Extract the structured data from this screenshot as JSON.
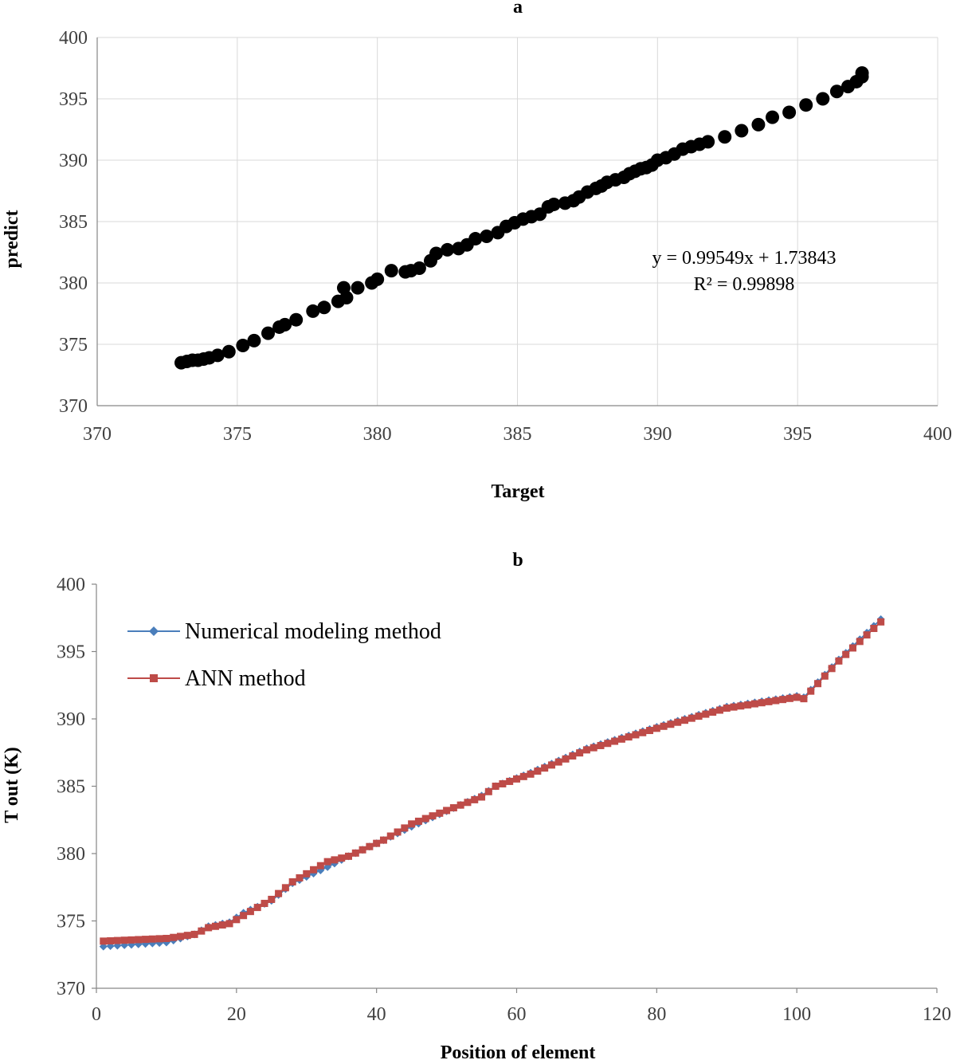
{
  "chart_data": [
    {
      "id": "a",
      "type": "scatter",
      "title": "a",
      "xlabel": "Target",
      "ylabel": "predict",
      "xlim": [
        370,
        400
      ],
      "ylim": [
        370,
        400
      ],
      "xticks": [
        370,
        375,
        380,
        385,
        390,
        395,
        400
      ],
      "yticks": [
        370,
        375,
        380,
        385,
        390,
        395,
        400
      ],
      "grid": true,
      "point_color": "#000000",
      "equation": "y = 0.99549x + 1.73843",
      "r_squared": "R² = 0.99898",
      "points": [
        [
          373.0,
          373.5
        ],
        [
          373.2,
          373.6
        ],
        [
          373.4,
          373.7
        ],
        [
          373.6,
          373.7
        ],
        [
          373.8,
          373.8
        ],
        [
          374.0,
          373.9
        ],
        [
          374.3,
          374.1
        ],
        [
          374.7,
          374.4
        ],
        [
          375.2,
          374.9
        ],
        [
          375.6,
          375.3
        ],
        [
          376.1,
          375.9
        ],
        [
          376.5,
          376.4
        ],
        [
          376.7,
          376.6
        ],
        [
          377.1,
          377.0
        ],
        [
          377.7,
          377.7
        ],
        [
          378.1,
          378.0
        ],
        [
          378.6,
          378.5
        ],
        [
          378.8,
          379.6
        ],
        [
          378.9,
          378.8
        ],
        [
          379.3,
          379.6
        ],
        [
          379.8,
          380.0
        ],
        [
          380.0,
          380.3
        ],
        [
          380.5,
          381.0
        ],
        [
          381.0,
          380.9
        ],
        [
          381.2,
          381.0
        ],
        [
          381.5,
          381.2
        ],
        [
          381.9,
          381.8
        ],
        [
          382.1,
          382.4
        ],
        [
          382.5,
          382.7
        ],
        [
          382.9,
          382.8
        ],
        [
          383.2,
          383.1
        ],
        [
          383.5,
          383.6
        ],
        [
          383.9,
          383.8
        ],
        [
          384.3,
          384.1
        ],
        [
          384.6,
          384.6
        ],
        [
          384.9,
          384.9
        ],
        [
          385.2,
          385.2
        ],
        [
          385.5,
          385.4
        ],
        [
          385.8,
          385.6
        ],
        [
          386.1,
          386.2
        ],
        [
          386.3,
          386.4
        ],
        [
          386.7,
          386.5
        ],
        [
          387.0,
          386.7
        ],
        [
          387.2,
          387.0
        ],
        [
          387.5,
          387.4
        ],
        [
          387.8,
          387.7
        ],
        [
          388.0,
          387.9
        ],
        [
          388.2,
          388.2
        ],
        [
          388.5,
          388.4
        ],
        [
          388.8,
          388.6
        ],
        [
          389.0,
          388.9
        ],
        [
          389.2,
          389.1
        ],
        [
          389.4,
          389.3
        ],
        [
          389.6,
          389.4
        ],
        [
          389.8,
          389.6
        ],
        [
          390.0,
          390.0
        ],
        [
          390.3,
          390.2
        ],
        [
          390.6,
          390.5
        ],
        [
          390.9,
          390.9
        ],
        [
          391.2,
          391.1
        ],
        [
          391.5,
          391.3
        ],
        [
          391.8,
          391.5
        ],
        [
          392.4,
          391.9
        ],
        [
          393.0,
          392.4
        ],
        [
          393.6,
          392.9
        ],
        [
          394.1,
          393.5
        ],
        [
          394.7,
          393.9
        ],
        [
          395.3,
          394.5
        ],
        [
          395.9,
          395.0
        ],
        [
          396.4,
          395.6
        ],
        [
          396.8,
          396.0
        ],
        [
          397.1,
          396.4
        ],
        [
          397.3,
          396.8
        ],
        [
          397.3,
          397.1
        ]
      ]
    },
    {
      "id": "b",
      "type": "line",
      "title": "b",
      "xlabel": "Position of element",
      "ylabel": "T out (K)",
      "xlim": [
        0,
        120
      ],
      "ylim": [
        370,
        400
      ],
      "xticks": [
        0,
        20,
        40,
        60,
        80,
        100,
        120
      ],
      "yticks": [
        370,
        375,
        380,
        385,
        390,
        395,
        400
      ],
      "grid": false,
      "legend_position": "top-left",
      "series": [
        {
          "name": "Numerical modeling method",
          "color": "#4a7ebb",
          "marker": "diamond",
          "anchors": [
            [
              1,
              373.1
            ],
            [
              10,
              373.4
            ],
            [
              14,
              374.0
            ],
            [
              16,
              374.6
            ],
            [
              19,
              374.9
            ],
            [
              21,
              375.6
            ],
            [
              25,
              376.5
            ],
            [
              28,
              377.8
            ],
            [
              33,
              379.0
            ],
            [
              36,
              379.8
            ],
            [
              41,
              381.0
            ],
            [
              45,
              382.0
            ],
            [
              55,
              384.3
            ],
            [
              57,
              385.0
            ],
            [
              62,
              386.0
            ],
            [
              70,
              387.8
            ],
            [
              80,
              389.4
            ],
            [
              90,
              390.9
            ],
            [
              100,
              391.7
            ],
            [
              101,
              391.6
            ],
            [
              106,
              394.4
            ],
            [
              112,
              397.4
            ]
          ]
        },
        {
          "name": "ANN method",
          "color": "#be4b48",
          "marker": "square",
          "anchors": [
            [
              1,
              373.5
            ],
            [
              10,
              373.7
            ],
            [
              14,
              374.0
            ],
            [
              16,
              374.5
            ],
            [
              19,
              374.8
            ],
            [
              21,
              375.4
            ],
            [
              25,
              376.6
            ],
            [
              28,
              377.9
            ],
            [
              33,
              379.4
            ],
            [
              36,
              379.8
            ],
            [
              41,
              381.0
            ],
            [
              45,
              382.2
            ],
            [
              55,
              384.2
            ],
            [
              57,
              385.0
            ],
            [
              62,
              385.9
            ],
            [
              70,
              387.7
            ],
            [
              80,
              389.3
            ],
            [
              90,
              390.8
            ],
            [
              100,
              391.6
            ],
            [
              101,
              391.5
            ],
            [
              106,
              394.3
            ],
            [
              112,
              397.2
            ]
          ]
        }
      ],
      "points_per_series": 112
    }
  ]
}
